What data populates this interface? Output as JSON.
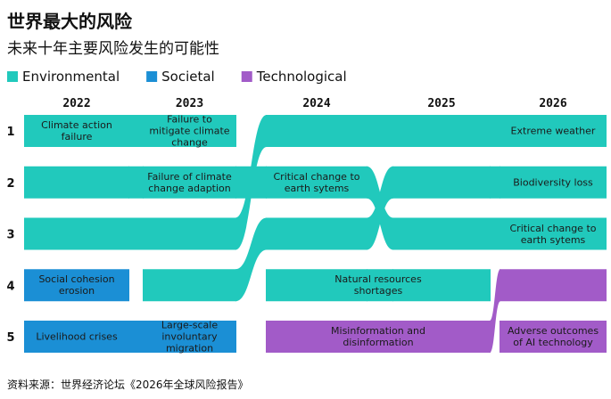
{
  "chart_data": {
    "type": "bump",
    "title": "世界最大的风险",
    "subtitle": "未来十年主要风险发生的可能性",
    "source": "资料来源：世界经济论坛《2026年全球风险报告》",
    "legend": [
      {
        "name": "Environmental",
        "color": "#21c9bc"
      },
      {
        "name": "Societal",
        "color": "#1b8fd5"
      },
      {
        "name": "Technological",
        "color": "#a25bc8"
      }
    ],
    "categories": [
      "2022",
      "2023",
      "2024",
      "2025",
      "2026"
    ],
    "yticks": [
      1,
      2,
      3,
      4,
      5
    ],
    "series": [
      {
        "color": "#21c9bc",
        "values": [
          1,
          1,
          null,
          null,
          null
        ],
        "labels": [
          "Climate action failure",
          "Failure to mitigate climate change",
          null,
          null,
          null
        ]
      },
      {
        "color": "#21c9bc",
        "values": [
          3,
          3,
          1,
          1,
          1
        ],
        "labels": [
          null,
          null,
          null,
          null,
          "Extreme weather"
        ]
      },
      {
        "color": "#21c9bc",
        "values": [
          2,
          2,
          2,
          3,
          3
        ],
        "labels": [
          null,
          "Failure of climate change adaption",
          "Critical change to earth sytems",
          null,
          "Critical change to earth sytems"
        ]
      },
      {
        "color": "#21c9bc",
        "values": [
          null,
          4,
          3,
          2,
          2
        ],
        "labels": [
          null,
          null,
          null,
          null,
          "Biodiversity loss"
        ]
      },
      {
        "color": "#21c9bc",
        "values": [
          null,
          null,
          4,
          4,
          null
        ],
        "labels": [
          null,
          null,
          "Natural resources shortages",
          null,
          null
        ]
      },
      {
        "color": "#1b8fd5",
        "values": [
          4,
          null,
          null,
          null,
          null
        ],
        "labels": [
          "Social cohesion erosion",
          null,
          null,
          null,
          null
        ]
      },
      {
        "color": "#1b8fd5",
        "values": [
          5,
          5,
          null,
          null,
          null
        ],
        "labels": [
          "Livelihood crises",
          "Large-scale involuntary migration",
          null,
          null,
          null
        ]
      },
      {
        "color": "#a25bc8",
        "values": [
          null,
          null,
          5,
          5,
          4
        ],
        "labels": [
          null,
          null,
          "Misinformation and disinformation",
          null,
          null
        ]
      },
      {
        "color": "#a25bc8",
        "values": [
          null,
          null,
          null,
          null,
          5
        ],
        "labels": [
          null,
          null,
          null,
          null,
          "Adverse outcomes of AI technology"
        ]
      }
    ]
  }
}
